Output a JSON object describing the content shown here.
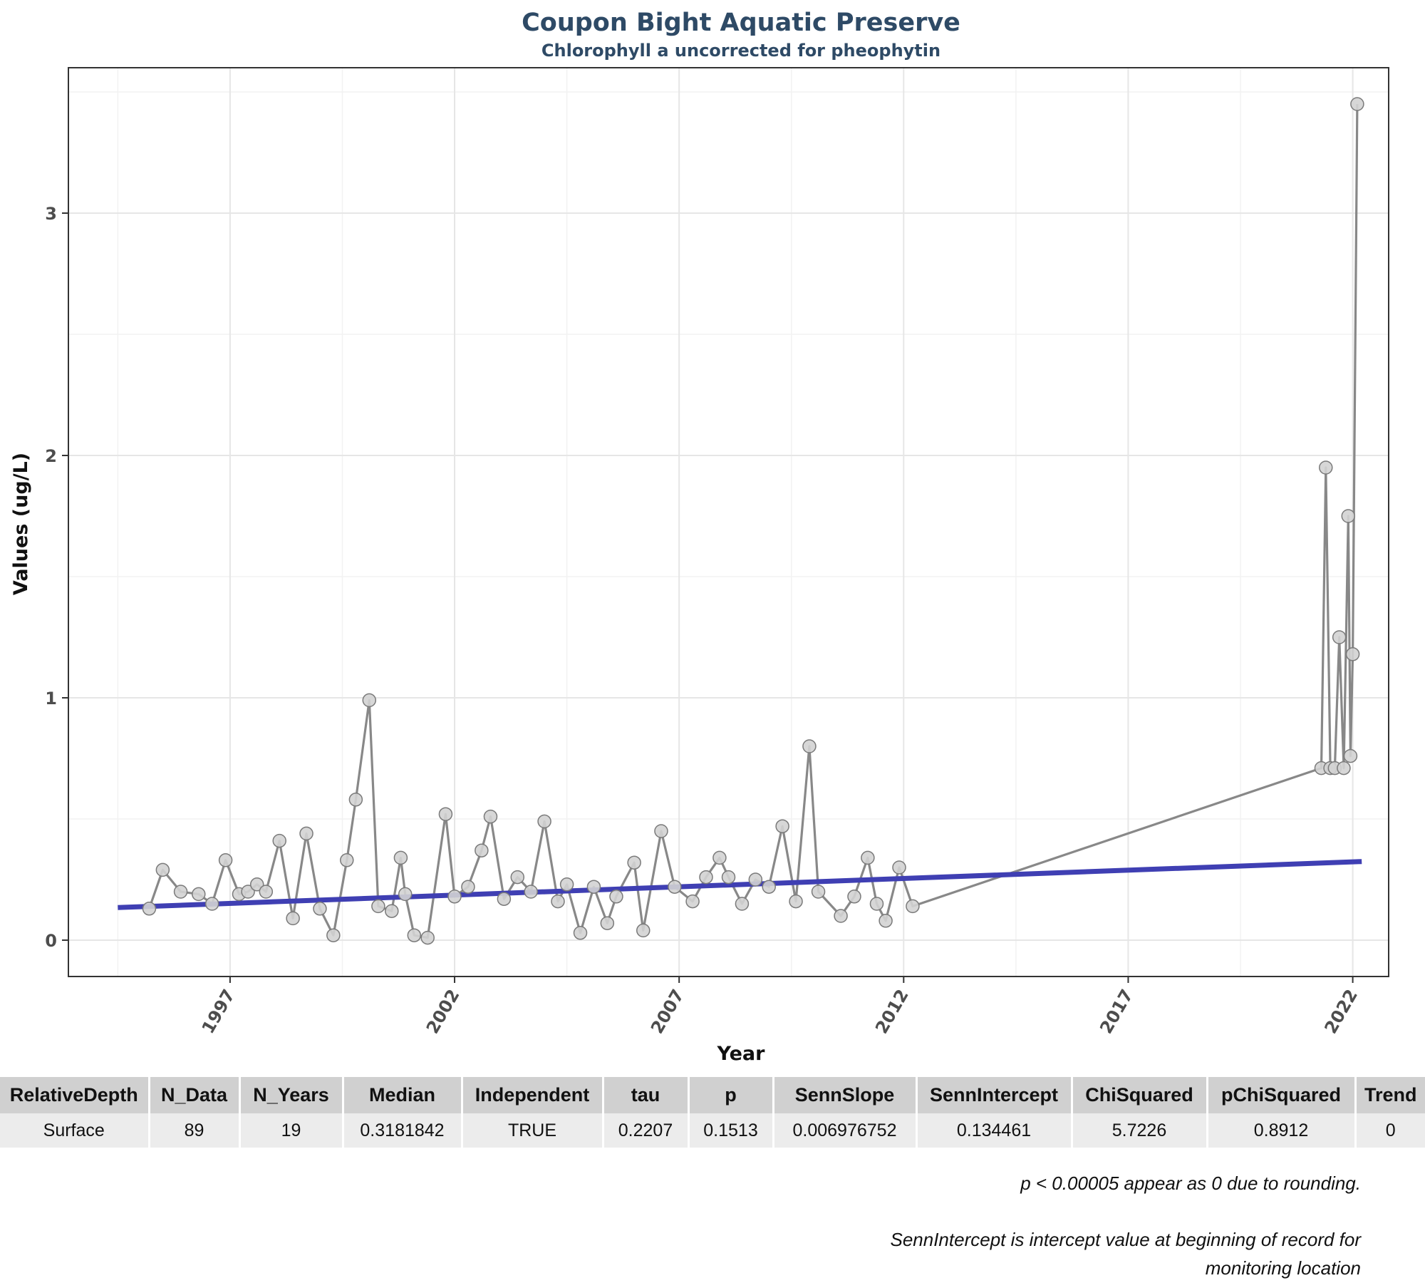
{
  "chart_data": {
    "type": "line",
    "title": "Coupon Bight Aquatic Preserve",
    "subtitle": "Chlorophyll a uncorrected for pheophytin",
    "xlabel": "Year",
    "ylabel": "Values (ug/L)",
    "x_tick_labels": [
      "1997",
      "2002",
      "2007",
      "2012",
      "2017",
      "2022"
    ],
    "y_tick_labels": [
      "0",
      "1",
      "2",
      "3"
    ],
    "xlim": [
      1993.4,
      2022.8
    ],
    "ylim": [
      -0.15,
      3.6
    ],
    "grid": true,
    "legend": "none",
    "colors": {
      "series_line": "#888888",
      "point_fill": "#d3d3d3",
      "point_stroke": "#7a7a7a",
      "trend_line": "#3f3fb3"
    },
    "series": [
      {
        "x": [
          1995.2,
          1995.5,
          1995.9,
          1996.3,
          1996.6,
          1996.9,
          1997.2,
          1997.4,
          1997.6,
          1997.8,
          1998.1,
          1998.4,
          1998.7,
          1999.0,
          1999.3,
          1999.6,
          1999.8,
          2000.1,
          2000.3,
          2000.6,
          2000.8,
          2000.9,
          2001.1,
          2001.4,
          2001.8,
          2002.0,
          2002.3,
          2002.6,
          2002.8,
          2003.1,
          2003.4,
          2003.7,
          2004.0,
          2004.3,
          2004.5,
          2004.8,
          2005.1,
          2005.4,
          2005.6,
          2006.0,
          2006.2,
          2006.6,
          2006.9,
          2007.3,
          2007.6,
          2007.9,
          2008.1,
          2008.4,
          2008.7,
          2009.0,
          2009.3,
          2009.6,
          2009.9,
          2010.1,
          2010.6,
          2010.9,
          2011.2,
          2011.4,
          2011.6,
          2011.9,
          2012.2,
          2021.3,
          2021.4,
          2021.5,
          2021.6,
          2021.7,
          2021.8,
          2021.9,
          2021.95,
          2022.0,
          2022.1
        ],
        "y": [
          0.13,
          0.29,
          0.2,
          0.19,
          0.15,
          0.33,
          0.19,
          0.2,
          0.23,
          0.2,
          0.41,
          0.09,
          0.44,
          0.13,
          0.02,
          0.33,
          0.58,
          0.99,
          0.14,
          0.12,
          0.34,
          0.19,
          0.02,
          0.01,
          0.52,
          0.18,
          0.22,
          0.37,
          0.51,
          0.17,
          0.26,
          0.2,
          0.49,
          0.16,
          0.23,
          0.03,
          0.22,
          0.07,
          0.18,
          0.32,
          0.04,
          0.45,
          0.22,
          0.16,
          0.26,
          0.34,
          0.26,
          0.15,
          0.25,
          0.22,
          0.47,
          0.16,
          0.8,
          0.2,
          0.1,
          0.18,
          0.34,
          0.15,
          0.08,
          0.3,
          0.14,
          0.71,
          1.95,
          0.71,
          0.71,
          1.25,
          0.71,
          1.75,
          0.76,
          1.18,
          3.45
        ]
      }
    ],
    "trend": {
      "x": [
        1994.5,
        2022.2
      ],
      "y": [
        0.134461,
        0.3244
      ]
    }
  },
  "table": {
    "headers": [
      "RelativeDepth",
      "N_Data",
      "N_Years",
      "Median",
      "Independent",
      "tau",
      "p",
      "SennSlope",
      "SennIntercept",
      "ChiSquared",
      "pChiSquared",
      "Trend"
    ],
    "row": [
      "Surface",
      "89",
      "19",
      "0.3181842",
      "TRUE",
      "0.2207",
      "0.1513",
      "0.006976752",
      "0.134461",
      "5.7226",
      "0.8912",
      "0"
    ]
  },
  "footnotes": {
    "rounding": "p < 0.00005 appear as 0 due to rounding.",
    "intercept": "SennIntercept is intercept value at beginning of record for monitoring location"
  }
}
